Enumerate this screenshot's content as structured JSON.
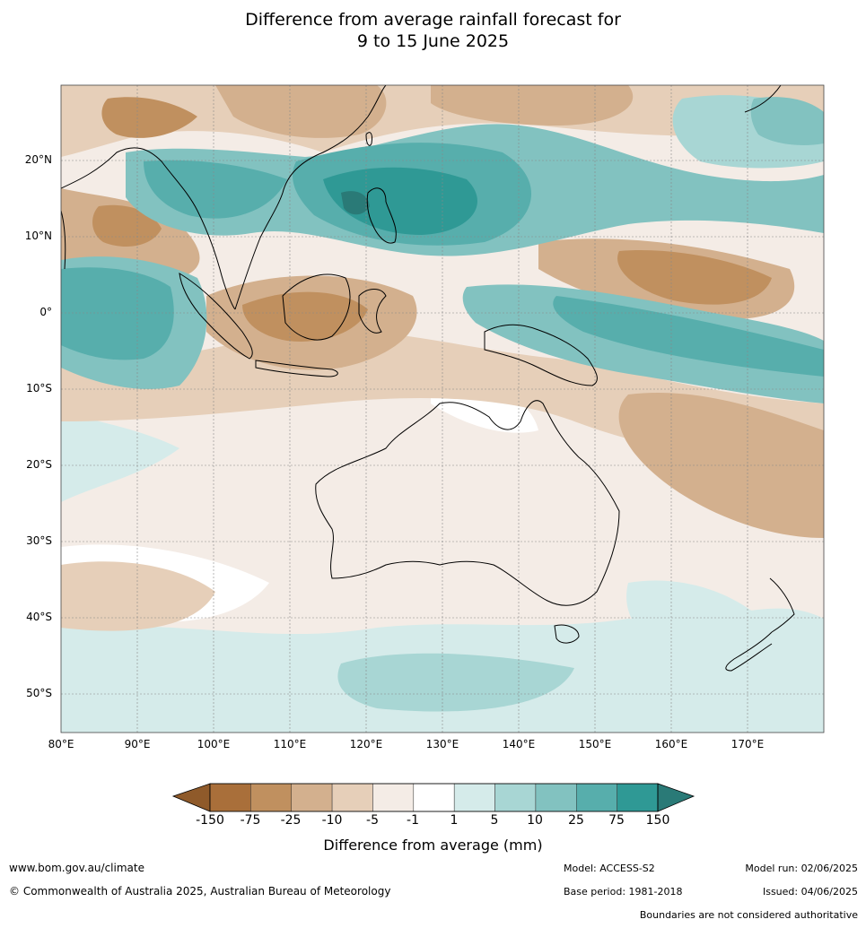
{
  "title": {
    "line1": "Difference from average rainfall forecast for",
    "line2": "9 to 15 June 2025"
  },
  "map": {
    "lat_labels": [
      "20°N",
      "10°N",
      "0°",
      "10°S",
      "20°S",
      "30°S",
      "40°S",
      "50°S"
    ],
    "lon_labels": [
      "80°E",
      "90°E",
      "100°E",
      "110°E",
      "120°E",
      "130°E",
      "140°E",
      "150°E",
      "160°E",
      "170°E"
    ]
  },
  "colorbar": {
    "ticks": [
      "-150",
      "-75",
      "-25",
      "-10",
      "-5",
      "-1",
      "1",
      "5",
      "10",
      "25",
      "75",
      "150"
    ],
    "colors": [
      "#a96f3a",
      "#c0905f",
      "#d3b08e",
      "#e6cfb9",
      "#f4ece6",
      "#ffffff",
      "#d5ebea",
      "#a8d6d4",
      "#82c2c0",
      "#57aeac",
      "#2f9995"
    ],
    "extend_low_color": "#8f5a2a",
    "extend_high_color": "#2a7a77",
    "title": "Difference from average (mm)"
  },
  "footer": {
    "website": "www.bom.gov.au/climate",
    "copyright": "© Commonwealth of Australia 2025, Australian Bureau of Meteorology",
    "model": "Model: ACCESS-S2",
    "base_period": "Base period: 1981-2018",
    "model_run": "Model run: 02/06/2025",
    "issued": "Issued: 04/06/2025",
    "boundaries_note": "Boundaries are not considered authoritative"
  }
}
